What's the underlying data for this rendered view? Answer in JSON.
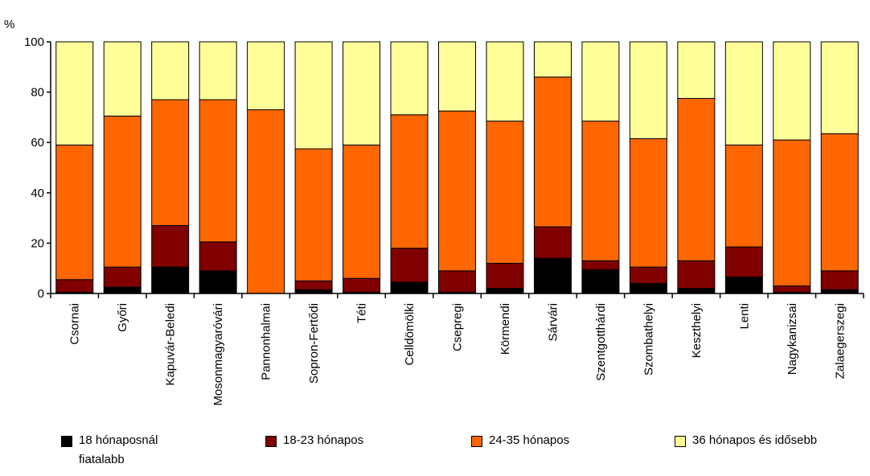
{
  "chart_data": {
    "type": "bar",
    "stacked": true,
    "unit_label": "%",
    "ylim": [
      0,
      100
    ],
    "yticks": [
      "0",
      "20",
      "40",
      "60",
      "80",
      "100"
    ],
    "grid": false,
    "legend_position": "bottom",
    "categories": [
      "Csornai",
      "Győri",
      "Kapuvár-Beledi",
      "Mosonmagyaróvári",
      "Pannonhalmai",
      "Sopron-Fertődi",
      "Téti",
      "Celldömölki",
      "Csepregi",
      "Körmendi",
      "Sárvári",
      "Szentgotthárdi",
      "Szombathelyi",
      "Keszthelyi",
      "Lenti",
      "Nagykanizsai",
      "Zalaegerszegi"
    ],
    "series": [
      {
        "name": "18 hónaposnál fiatalabb",
        "color": "#000000",
        "values": [
          0.5,
          2.5,
          10.5,
          9,
          0,
          1.5,
          0.5,
          4.5,
          0.5,
          2,
          14,
          9.5,
          4,
          2,
          6.5,
          0.5,
          1.5
        ]
      },
      {
        "name": "18-23 hónapos",
        "color": "#800000",
        "values": [
          5,
          8,
          16.5,
          11.5,
          0,
          3.5,
          5.5,
          13.5,
          8.5,
          10,
          12.5,
          3.5,
          6.5,
          11,
          12,
          2.5,
          7.5
        ]
      },
      {
        "name": "24-35 hónapos",
        "color": "#FF6600",
        "values": [
          53.5,
          60,
          50,
          56.5,
          73,
          52.5,
          53,
          53,
          63.5,
          56.5,
          59.5,
          55.5,
          51,
          64.5,
          40.5,
          58,
          54.5
        ]
      },
      {
        "name": "36 hónapos és idősebb",
        "color": "#FFFF99",
        "values": [
          41,
          29.5,
          23,
          23,
          27,
          42.5,
          41,
          29,
          27.5,
          31.5,
          14,
          31.5,
          38.5,
          22.5,
          41,
          39,
          36.5
        ]
      }
    ],
    "legend_labels": [
      {
        "line1": "18 hónaposnál",
        "line2": "fiatalabb"
      },
      {
        "line1": "18-23 hónapos",
        "line2": ""
      },
      {
        "line1": "24-35 hónapos",
        "line2": ""
      },
      {
        "line1": "36 hónapos és idősebb",
        "line2": ""
      }
    ]
  }
}
